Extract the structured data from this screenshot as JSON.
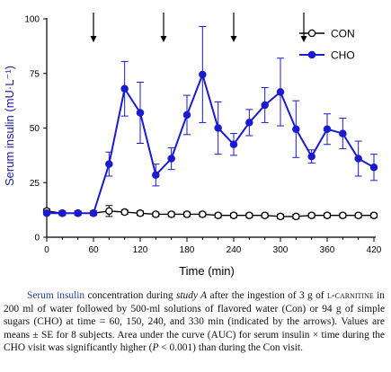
{
  "chart_data": {
    "type": "line",
    "x": [
      0,
      20,
      40,
      60,
      80,
      100,
      120,
      140,
      160,
      180,
      200,
      220,
      240,
      260,
      280,
      300,
      320,
      340,
      360,
      380,
      400,
      420
    ],
    "xlabel": "Time (min)",
    "ylabel": "Serum insulin (mU·L⁻¹)",
    "xlim": [
      0,
      420
    ],
    "ylim": [
      0,
      100
    ],
    "xticks": [
      0,
      60,
      120,
      180,
      240,
      300,
      360,
      420
    ],
    "yticks": [
      0,
      25,
      50,
      75,
      100
    ],
    "legend_position": "top-right",
    "grid": false,
    "arrows_at": [
      60,
      150,
      240,
      330
    ],
    "series": [
      {
        "name": "CON",
        "marker": "open-circle",
        "color": "#000000",
        "values": [
          12,
          11,
          11,
          11,
          12,
          11.5,
          11,
          10.5,
          10.5,
          10.5,
          10.5,
          10,
          10,
          10,
          10,
          9.5,
          9.5,
          10,
          10,
          10,
          10,
          10
        ],
        "errors": [
          1,
          1,
          1,
          1,
          2.5,
          1,
          1,
          1,
          1,
          1,
          1,
          1,
          1,
          1,
          1,
          1,
          1,
          1,
          1,
          1,
          1,
          1
        ]
      },
      {
        "name": "CHO",
        "marker": "filled-circle",
        "color": "#1a1ad0",
        "values": [
          11,
          11,
          11,
          11,
          33.5,
          68,
          57,
          28.5,
          36,
          56,
          74.5,
          50,
          42.5,
          52.5,
          60.5,
          66.5,
          49.5,
          37,
          49.5,
          47.5,
          36,
          32
        ],
        "errors": [
          0.8,
          0.8,
          0.8,
          0.8,
          5.5,
          12.5,
          14,
          5,
          5,
          9,
          22,
          12,
          5,
          6,
          8,
          15.5,
          13,
          3,
          7,
          7,
          8,
          6
        ]
      }
    ]
  },
  "caption": {
    "lead": "Serum insulin",
    "part1": " concentration during ",
    "study": "study A",
    "part2": " after the ingestion of 3 g of ",
    "carnitine": "l-carnitine",
    "part3": " in 200 ml of water followed by 500-ml solutions of flavored water (Con) or 94 g of simple sugars (CHO) at time = 60, 150, 240, and 330 min (indicated by the arrows). Values are means ± SE for 8 subjects. Area under the curve (AUC) for serum insulin × time during the CHO visit was significantly higher (",
    "p": "P",
    "part4": " < 0.001) than during the Con visit."
  }
}
